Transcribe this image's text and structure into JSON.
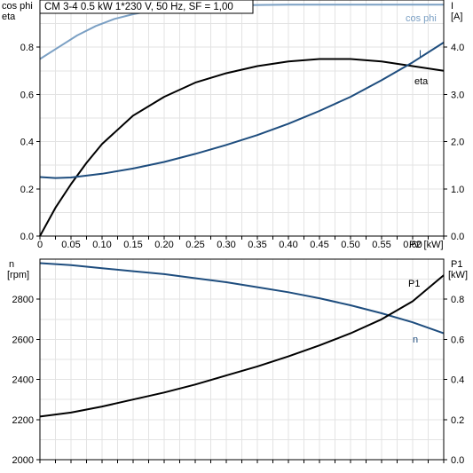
{
  "header": {
    "title": "CM 3-4   0.5 kW   1*230 V, 50 Hz, SF = 1,00"
  },
  "chart_data": [
    {
      "type": "line",
      "panel": "top",
      "left_axis_label": [
        "cos phi",
        "eta"
      ],
      "right_axis_label": [
        "I",
        "[A]"
      ],
      "x_axis_label": "P2 [kW]",
      "xlim": [
        0,
        0.65
      ],
      "x_ticks": [
        "0",
        "0.05",
        "0.10",
        "0.15",
        "0.20",
        "0.25",
        "0.30",
        "0.35",
        "0.40",
        "0.45",
        "0.50",
        "0.55",
        "0.60"
      ],
      "ylim_left": [
        0,
        1.0
      ],
      "y_ticks_left": [
        "0.0",
        "0.2",
        "0.4",
        "0.6",
        "0.8"
      ],
      "ylim_right": [
        0,
        5.0
      ],
      "y_ticks_right": [
        "0.0",
        "1.0",
        "2.0",
        "3.0",
        "4.0"
      ],
      "grid": true,
      "series": [
        {
          "name": "cos phi",
          "axis": "left",
          "color": "#7ba0c4",
          "x": [
            0,
            0.03,
            0.06,
            0.09,
            0.12,
            0.15,
            0.18,
            0.21,
            0.25,
            0.3,
            0.35,
            0.4,
            0.45,
            0.5,
            0.55,
            0.6,
            0.65
          ],
          "y": [
            0.75,
            0.8,
            0.85,
            0.89,
            0.92,
            0.94,
            0.955,
            0.965,
            0.972,
            0.977,
            0.979,
            0.98,
            0.98,
            0.98,
            0.98,
            0.98,
            0.98
          ]
        },
        {
          "name": "eta",
          "axis": "left",
          "color": "#000000",
          "x": [
            0,
            0.025,
            0.05,
            0.075,
            0.1,
            0.15,
            0.2,
            0.25,
            0.3,
            0.35,
            0.4,
            0.45,
            0.5,
            0.55,
            0.6,
            0.65
          ],
          "y": [
            0,
            0.12,
            0.22,
            0.31,
            0.39,
            0.51,
            0.59,
            0.65,
            0.69,
            0.72,
            0.74,
            0.75,
            0.75,
            0.74,
            0.72,
            0.7
          ]
        },
        {
          "name": "I",
          "axis": "right",
          "color": "#1e4d7e",
          "x": [
            0,
            0.025,
            0.05,
            0.1,
            0.15,
            0.2,
            0.25,
            0.3,
            0.35,
            0.4,
            0.45,
            0.5,
            0.55,
            0.6,
            0.65
          ],
          "y": [
            1.25,
            1.23,
            1.24,
            1.32,
            1.43,
            1.57,
            1.74,
            1.93,
            2.14,
            2.38,
            2.65,
            2.95,
            3.3,
            3.68,
            4.1
          ]
        }
      ]
    },
    {
      "type": "line",
      "panel": "bottom",
      "left_axis_label": [
        "n",
        "[rpm]"
      ],
      "right_axis_label": [
        "P1",
        "[kW]"
      ],
      "xlim": [
        0,
        0.65
      ],
      "ylim_left": [
        2000,
        3000
      ],
      "y_ticks_left": [
        "2000",
        "2200",
        "2400",
        "2600",
        "2800"
      ],
      "ylim_right": [
        0,
        1.0
      ],
      "y_ticks_right": [
        "0.0",
        "0.2",
        "0.4",
        "0.6",
        "0.8"
      ],
      "grid": true,
      "series": [
        {
          "name": "n",
          "axis": "left",
          "color": "#1e4d7e",
          "x": [
            0,
            0.05,
            0.1,
            0.15,
            0.2,
            0.25,
            0.3,
            0.35,
            0.4,
            0.45,
            0.5,
            0.55,
            0.6,
            0.65
          ],
          "y": [
            2980,
            2970,
            2955,
            2940,
            2925,
            2905,
            2885,
            2860,
            2835,
            2805,
            2770,
            2730,
            2685,
            2630
          ]
        },
        {
          "name": "P1",
          "axis": "right",
          "color": "#000000",
          "x": [
            0,
            0.05,
            0.1,
            0.15,
            0.2,
            0.25,
            0.3,
            0.35,
            0.4,
            0.45,
            0.5,
            0.55,
            0.6,
            0.65
          ],
          "y": [
            0.215,
            0.235,
            0.265,
            0.3,
            0.335,
            0.375,
            0.42,
            0.465,
            0.515,
            0.57,
            0.63,
            0.7,
            0.79,
            0.92
          ]
        }
      ]
    }
  ]
}
